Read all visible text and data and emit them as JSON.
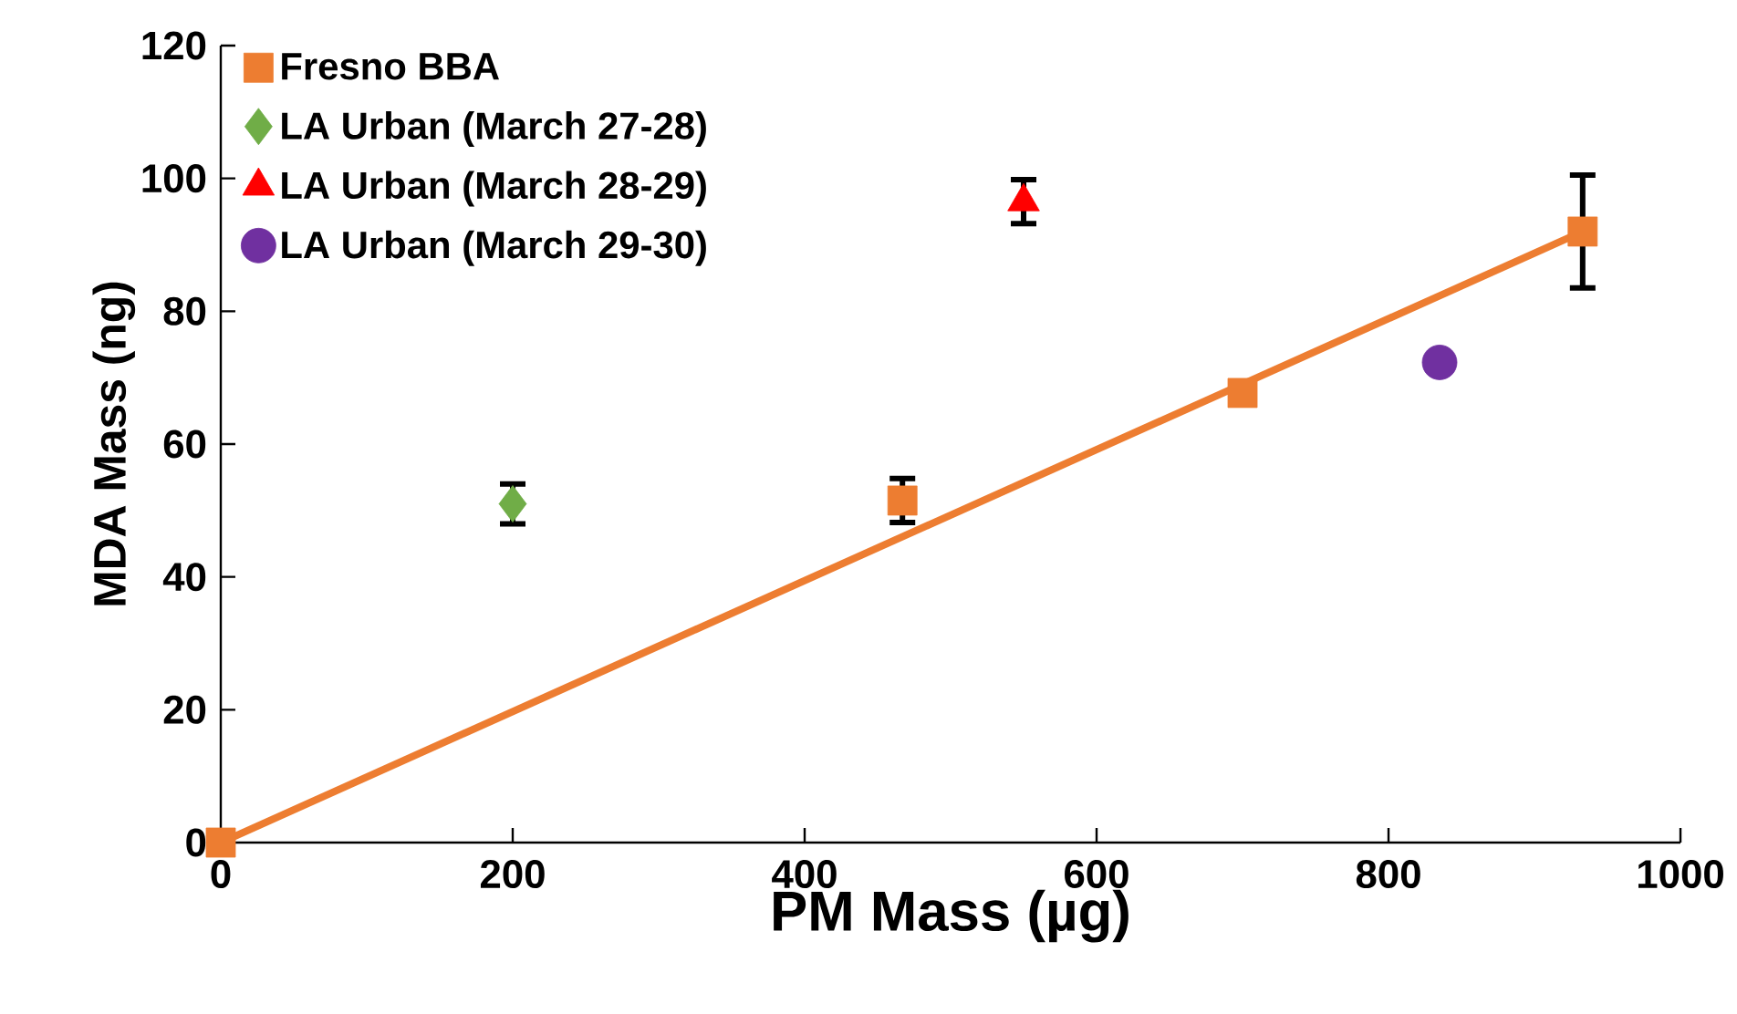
{
  "chart_data": {
    "type": "scatter",
    "xlabel": "PM Mass (µg)",
    "ylabel": "MDA Mass (ng)",
    "xlim": [
      0,
      1000
    ],
    "ylim": [
      0,
      120
    ],
    "xticks": [
      0,
      200,
      400,
      600,
      800,
      1000
    ],
    "yticks": [
      0,
      20,
      40,
      60,
      80,
      100,
      120
    ],
    "grid": false,
    "legend": "top left",
    "series": [
      {
        "name": "Fresno BBA",
        "color": "#ed7d31",
        "marker": "square",
        "x": [
          0,
          467,
          700,
          933
        ],
        "values": [
          0,
          51.5,
          67.7,
          92
        ],
        "errors": [
          null,
          3.3,
          null,
          8.5
        ]
      },
      {
        "name": "LA Urban (March 27-28)",
        "color": "#70ad47",
        "marker": "diamond",
        "x": [
          200
        ],
        "values": [
          51
        ],
        "errors": [
          3
        ]
      },
      {
        "name": "LA Urban (March 28-29)",
        "color": "#ff0000",
        "marker": "triangle",
        "x": [
          550
        ],
        "values": [
          96.5
        ],
        "errors": [
          3.3
        ]
      },
      {
        "name": "LA Urban (March 29-30)",
        "color": "#7030a0",
        "marker": "circle",
        "x": [
          835
        ],
        "values": [
          72.3
        ],
        "errors": [
          null
        ]
      },
      {
        "type": "line",
        "color": "#ed7d31",
        "marker": "none",
        "x": [
          0,
          933
        ],
        "values": [
          0,
          92
        ]
      }
    ]
  }
}
